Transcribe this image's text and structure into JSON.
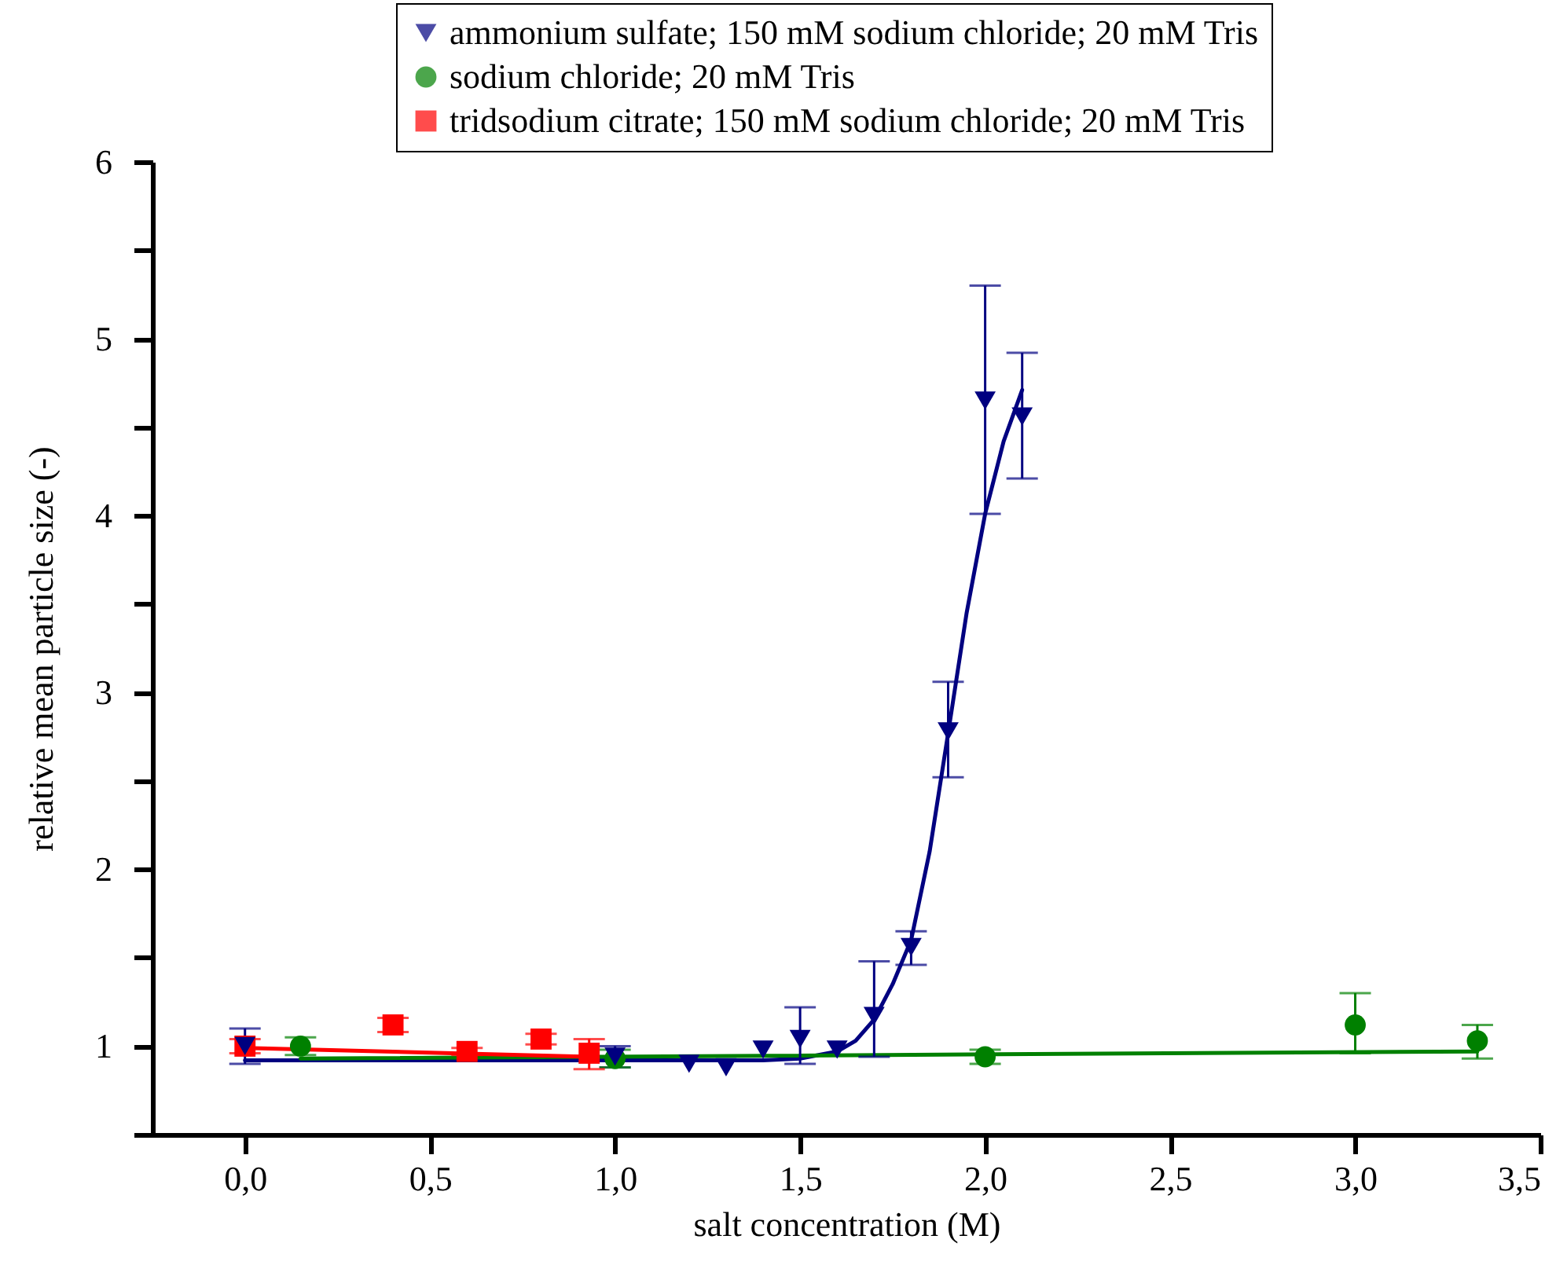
{
  "chart_data": {
    "type": "scatter",
    "xlabel": "salt concentration (M)",
    "ylabel": "relative mean particle size (-)",
    "xlim": [
      -0.25,
      3.5
    ],
    "xticks": [
      {
        "value": 0,
        "label": "0,0"
      },
      {
        "value": 0.5,
        "label": "0,5"
      },
      {
        "value": 1,
        "label": "1,0"
      },
      {
        "value": 1.5,
        "label": "1,5"
      },
      {
        "value": 2,
        "label": "2,0"
      },
      {
        "value": 2.5,
        "label": "2,5"
      },
      {
        "value": 3,
        "label": "3,0"
      },
      {
        "value": 3.5,
        "label": "3,5"
      }
    ],
    "ylim": [
      0.5,
      6
    ],
    "yticks": [
      {
        "value": 0.5,
        "label": null
      },
      1,
      {
        "value": 1.5,
        "label": null
      },
      2,
      {
        "value": 2.5,
        "label": null
      },
      3,
      {
        "value": 3.5,
        "label": null
      },
      4,
      {
        "value": 4.5,
        "label": null
      },
      5,
      {
        "value": 5.5,
        "label": null
      },
      6
    ],
    "grid": false,
    "legend": "top right",
    "series": [
      {
        "name": "ammonium sulfate; 150 mM sodium chloride; 20 mM Tris",
        "type": "scatter",
        "marker": "triangle",
        "color": "#000080",
        "x": [
          0,
          1,
          1.2,
          1.3,
          1.4,
          1.5,
          1.6,
          1.7,
          1.8,
          1.9,
          2,
          2.1
        ],
        "values": [
          1.0,
          0.94,
          0.9,
          0.88,
          0.98,
          1.04,
          0.98,
          1.17,
          1.56,
          2.78,
          4.65,
          4.56
        ],
        "errors": [
          0.1,
          0.06,
          null,
          null,
          null,
          [
            0.9,
            1.22
          ],
          null,
          [
            0.94,
            1.48
          ],
          [
            1.46,
            1.65
          ],
          [
            2.52,
            3.06
          ],
          [
            4.01,
            5.3
          ],
          [
            4.21,
            4.92
          ]
        ]
      },
      {
        "name": "sodium chloride; 20 mM Tris",
        "type": "scatter",
        "marker": "circle",
        "color": "#008000",
        "x": [
          0.15,
          1,
          2,
          3,
          3.33
        ],
        "values": [
          1.0,
          0.93,
          0.94,
          1.12,
          1.03
        ],
        "errors": [
          0.05,
          0.05,
          0.04,
          [
            0.96,
            1.3
          ],
          [
            0.93,
            1.12
          ]
        ]
      },
      {
        "name": "tridsodium citrate; 150 mM sodium chloride; 20 mM Tris",
        "type": "scatter",
        "marker": "square",
        "color": "#ff0000",
        "x": [
          0,
          0.4,
          0.6,
          0.8,
          0.93
        ],
        "values": [
          1.0,
          1.12,
          0.97,
          1.04,
          0.96
        ],
        "errors": [
          0.04,
          0.04,
          0.02,
          0.03,
          [
            0.87,
            1.04
          ]
        ]
      },
      {
        "type": "line",
        "color": "#000080",
        "x": [
          0,
          0.5,
          1,
          1.4,
          1.5,
          1.6,
          1.65,
          1.7,
          1.75,
          1.8,
          1.85,
          1.9,
          1.95,
          2,
          2.05,
          2.1
        ],
        "values": [
          0.92,
          0.92,
          0.92,
          0.92,
          0.93,
          0.97,
          1.03,
          1.15,
          1.35,
          1.6,
          2.1,
          2.77,
          3.45,
          4.01,
          4.42,
          4.71
        ]
      },
      {
        "type": "line",
        "color": "#008000",
        "x": [
          0.15,
          3.33
        ],
        "values": [
          0.93,
          0.97
        ]
      },
      {
        "type": "line",
        "color": "#ff0000",
        "x": [
          0,
          0.93
        ],
        "values": [
          0.99,
          0.94
        ]
      }
    ]
  }
}
